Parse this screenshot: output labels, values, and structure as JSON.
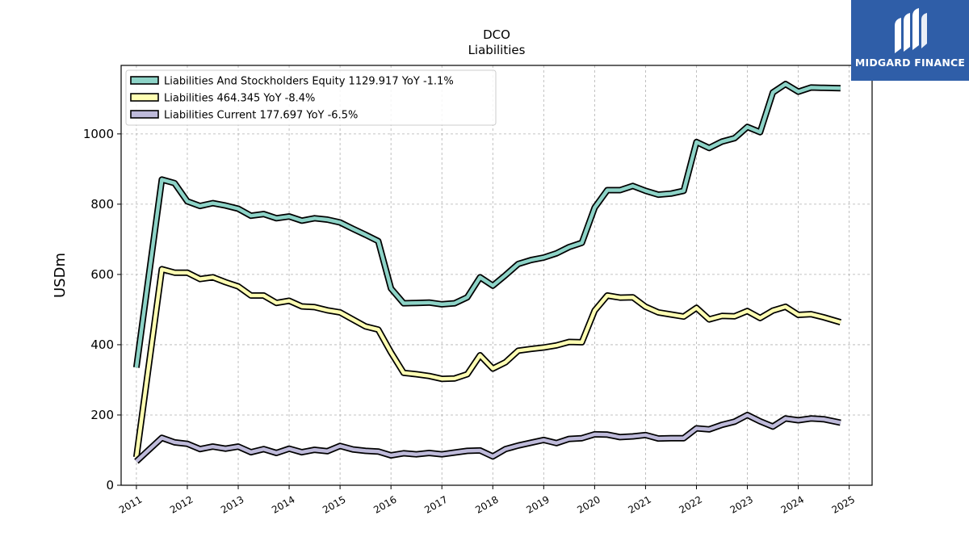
{
  "chart_data": {
    "type": "line",
    "title": "DCO",
    "subtitle": "Liabilities",
    "ylabel": "USDm",
    "xlabel": "",
    "xlim": [
      2010.7,
      2025.45
    ],
    "ylim": [
      0,
      1195
    ],
    "y_ticks": [
      0,
      200,
      400,
      600,
      800,
      1000
    ],
    "x_ticks": [
      "2011",
      "2012",
      "2013",
      "2014",
      "2015",
      "2016",
      "2017",
      "2018",
      "2019",
      "2020",
      "2021",
      "2022",
      "2023",
      "2024",
      "2025"
    ],
    "grid": true,
    "legend_position": "top-left",
    "series": [
      {
        "name": "Liabilities And Stockholders Equity  1129.917 YoY -1.1%",
        "color": "#8dd3c7",
        "points": [
          [
            2011.0,
            335
          ],
          [
            2011.5,
            870
          ],
          [
            2011.75,
            860
          ],
          [
            2012.0,
            808
          ],
          [
            2012.25,
            795
          ],
          [
            2012.5,
            803
          ],
          [
            2012.75,
            796
          ],
          [
            2013.0,
            787
          ],
          [
            2013.25,
            767
          ],
          [
            2013.5,
            772
          ],
          [
            2013.75,
            760
          ],
          [
            2014.0,
            765
          ],
          [
            2014.25,
            753
          ],
          [
            2014.5,
            760
          ],
          [
            2014.75,
            756
          ],
          [
            2015.0,
            748
          ],
          [
            2015.25,
            730
          ],
          [
            2015.5,
            713
          ],
          [
            2015.75,
            695
          ],
          [
            2016.0,
            560
          ],
          [
            2016.25,
            518
          ],
          [
            2016.5,
            519
          ],
          [
            2016.75,
            520
          ],
          [
            2017.0,
            515
          ],
          [
            2017.25,
            518
          ],
          [
            2017.5,
            535
          ],
          [
            2017.75,
            592
          ],
          [
            2018.0,
            568
          ],
          [
            2018.25,
            598
          ],
          [
            2018.5,
            630
          ],
          [
            2018.75,
            641
          ],
          [
            2019.0,
            648
          ],
          [
            2019.25,
            660
          ],
          [
            2019.5,
            678
          ],
          [
            2019.75,
            690
          ],
          [
            2020.0,
            790
          ],
          [
            2020.25,
            840
          ],
          [
            2020.5,
            840
          ],
          [
            2020.75,
            852
          ],
          [
            2021.0,
            838
          ],
          [
            2021.25,
            827
          ],
          [
            2021.5,
            830
          ],
          [
            2021.75,
            838
          ],
          [
            2022.0,
            977
          ],
          [
            2022.25,
            960
          ],
          [
            2022.5,
            978
          ],
          [
            2022.75,
            988
          ],
          [
            2023.0,
            1020
          ],
          [
            2023.25,
            1005
          ],
          [
            2023.5,
            1118
          ],
          [
            2023.75,
            1142
          ],
          [
            2024.0,
            1120
          ],
          [
            2024.25,
            1132
          ],
          [
            2024.5,
            1131
          ],
          [
            2024.83,
            1130
          ]
        ]
      },
      {
        "name": "Liabilities  464.345 YoY -8.4%",
        "color": "#ffffb3",
        "points": [
          [
            2011.0,
            80
          ],
          [
            2011.5,
            615
          ],
          [
            2011.75,
            605
          ],
          [
            2012.0,
            605
          ],
          [
            2012.25,
            587
          ],
          [
            2012.5,
            592
          ],
          [
            2012.75,
            578
          ],
          [
            2013.0,
            566
          ],
          [
            2013.25,
            540
          ],
          [
            2013.5,
            540
          ],
          [
            2013.75,
            519
          ],
          [
            2014.0,
            525
          ],
          [
            2014.25,
            509
          ],
          [
            2014.5,
            507
          ],
          [
            2014.75,
            498
          ],
          [
            2015.0,
            492
          ],
          [
            2015.25,
            472
          ],
          [
            2015.5,
            452
          ],
          [
            2015.75,
            443
          ],
          [
            2016.0,
            378
          ],
          [
            2016.25,
            320
          ],
          [
            2016.5,
            316
          ],
          [
            2016.75,
            311
          ],
          [
            2017.0,
            303
          ],
          [
            2017.25,
            304
          ],
          [
            2017.5,
            316
          ],
          [
            2017.75,
            370
          ],
          [
            2018.0,
            332
          ],
          [
            2018.25,
            350
          ],
          [
            2018.5,
            383
          ],
          [
            2018.75,
            388
          ],
          [
            2019.0,
            392
          ],
          [
            2019.25,
            398
          ],
          [
            2019.5,
            408
          ],
          [
            2019.75,
            407
          ],
          [
            2020.0,
            497
          ],
          [
            2020.25,
            540
          ],
          [
            2020.5,
            534
          ],
          [
            2020.75,
            535
          ],
          [
            2021.0,
            508
          ],
          [
            2021.25,
            492
          ],
          [
            2021.5,
            486
          ],
          [
            2021.75,
            480
          ],
          [
            2022.0,
            505
          ],
          [
            2022.25,
            472
          ],
          [
            2022.5,
            482
          ],
          [
            2022.75,
            481
          ],
          [
            2023.0,
            496
          ],
          [
            2023.25,
            476
          ],
          [
            2023.5,
            497
          ],
          [
            2023.75,
            508
          ],
          [
            2024.0,
            485
          ],
          [
            2024.25,
            487
          ],
          [
            2024.5,
            478
          ],
          [
            2024.83,
            464
          ]
        ]
      },
      {
        "name": "Liabilities Current  177.697 YoY -6.5%",
        "color": "#bebada",
        "points": [
          [
            2011.0,
            68
          ],
          [
            2011.5,
            135
          ],
          [
            2011.75,
            122
          ],
          [
            2012.0,
            118
          ],
          [
            2012.25,
            103
          ],
          [
            2012.5,
            110
          ],
          [
            2012.75,
            104
          ],
          [
            2013.0,
            110
          ],
          [
            2013.25,
            94
          ],
          [
            2013.5,
            103
          ],
          [
            2013.75,
            92
          ],
          [
            2014.0,
            104
          ],
          [
            2014.25,
            94
          ],
          [
            2014.5,
            101
          ],
          [
            2014.75,
            97
          ],
          [
            2015.0,
            112
          ],
          [
            2015.25,
            102
          ],
          [
            2015.5,
            98
          ],
          [
            2015.75,
            96
          ],
          [
            2016.0,
            85
          ],
          [
            2016.25,
            91
          ],
          [
            2016.5,
            88
          ],
          [
            2016.75,
            92
          ],
          [
            2017.0,
            88
          ],
          [
            2017.25,
            93
          ],
          [
            2017.5,
            98
          ],
          [
            2017.75,
            99
          ],
          [
            2018.0,
            82
          ],
          [
            2018.25,
            103
          ],
          [
            2018.5,
            113
          ],
          [
            2018.75,
            121
          ],
          [
            2019.0,
            129
          ],
          [
            2019.25,
            120
          ],
          [
            2019.5,
            132
          ],
          [
            2019.75,
            134
          ],
          [
            2020.0,
            145
          ],
          [
            2020.25,
            144
          ],
          [
            2020.5,
            137
          ],
          [
            2020.75,
            139
          ],
          [
            2021.0,
            143
          ],
          [
            2021.25,
            133
          ],
          [
            2021.5,
            134
          ],
          [
            2021.75,
            134
          ],
          [
            2022.0,
            162
          ],
          [
            2022.25,
            159
          ],
          [
            2022.5,
            172
          ],
          [
            2022.75,
            181
          ],
          [
            2023.0,
            200
          ],
          [
            2023.25,
            182
          ],
          [
            2023.5,
            167
          ],
          [
            2023.75,
            190
          ],
          [
            2024.0,
            185
          ],
          [
            2024.25,
            190
          ],
          [
            2024.5,
            188
          ],
          [
            2024.83,
            178
          ]
        ]
      }
    ]
  },
  "logo": {
    "text": "MIDGARD FINANCE",
    "color": "#2f5ea8",
    "icon": "midgard-logo-icon"
  }
}
